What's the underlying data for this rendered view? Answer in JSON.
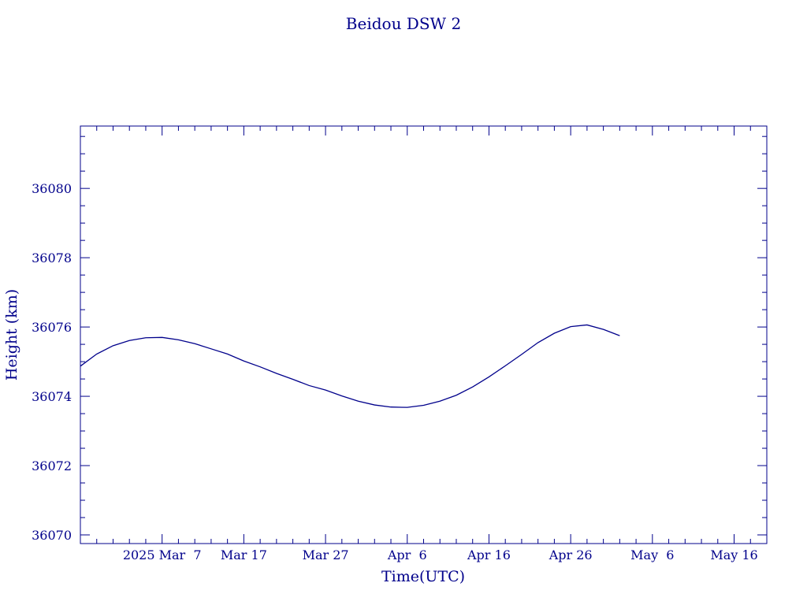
{
  "chart_data": {
    "type": "line",
    "title": "Beidou DSW 2",
    "xlabel": "Time(UTC)",
    "ylabel": "Height (km)",
    "x_ticks": [
      "2025 Mar  7",
      "Mar 17",
      "Mar 27",
      "Apr  6",
      "Apr 16",
      "Apr 26",
      "May  6",
      "May 16"
    ],
    "y_ticks": [
      "36070",
      "36072",
      "36074",
      "36076",
      "36078",
      "36080"
    ],
    "ylim": [
      36069.75,
      36081.8
    ],
    "xlim": [
      "2025-02-25",
      "2025-05-20"
    ],
    "grid": false,
    "color": "#00008b",
    "series": [
      {
        "x": [
          "2025-02-25",
          "2025-02-27",
          "2025-03-01",
          "2025-03-03",
          "2025-03-05",
          "2025-03-07",
          "2025-03-09",
          "2025-03-11",
          "2025-03-13",
          "2025-03-15",
          "2025-03-17",
          "2025-03-19",
          "2025-03-21",
          "2025-03-23",
          "2025-03-25",
          "2025-03-27",
          "2025-03-29",
          "2025-03-31",
          "2025-04-02",
          "2025-04-04",
          "2025-04-06",
          "2025-04-08",
          "2025-04-10",
          "2025-04-12",
          "2025-04-14",
          "2025-04-16",
          "2025-04-18",
          "2025-04-20",
          "2025-04-22",
          "2025-04-24",
          "2025-04-26",
          "2025-04-28",
          "2025-04-30",
          "2025-05-02"
        ],
        "values": [
          36074.87,
          36075.22,
          36075.46,
          36075.61,
          36075.69,
          36075.7,
          36075.63,
          36075.52,
          36075.37,
          36075.22,
          36075.02,
          36074.85,
          36074.66,
          36074.49,
          36074.31,
          36074.18,
          36074.01,
          36073.86,
          36073.75,
          36073.69,
          36073.68,
          36073.74,
          36073.86,
          36074.03,
          36074.27,
          36074.56,
          36074.88,
          36075.21,
          36075.55,
          36075.82,
          36076.01,
          36076.06,
          36075.93,
          36075.75
        ]
      }
    ]
  }
}
